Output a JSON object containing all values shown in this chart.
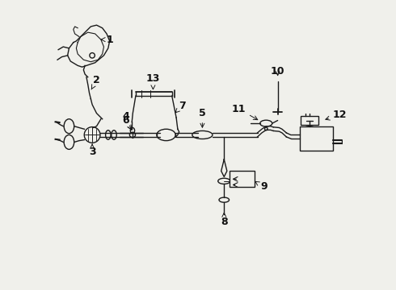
{
  "bg_color": "#f0f0eb",
  "line_color": "#1a1a1a",
  "lw": 1.0,
  "fig_w": 4.9,
  "fig_h": 3.6,
  "dpi": 100,
  "xlim": [
    0,
    10
  ],
  "ylim": [
    0,
    10
  ]
}
